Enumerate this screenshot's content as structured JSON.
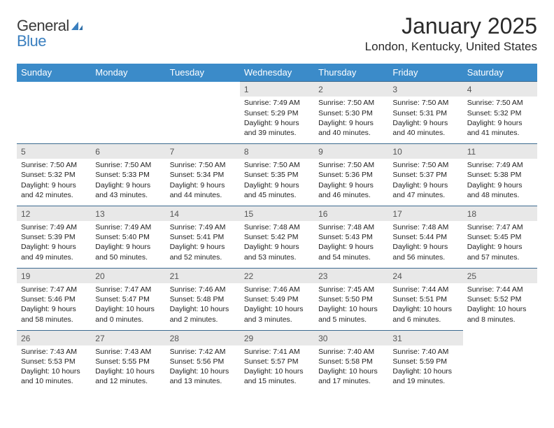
{
  "logo": {
    "word1": "General",
    "word2": "Blue"
  },
  "title": {
    "month": "January 2025",
    "location": "London, Kentucky, United States"
  },
  "colors": {
    "header_bg": "#3b8bc9",
    "header_text": "#ffffff",
    "daynum_bg": "#e8e8e8",
    "daynum_border": "#3b6a8f",
    "body_text": "#222222",
    "logo_gray": "#6a6a6a",
    "logo_blue": "#3a7fbf"
  },
  "typography": {
    "month_title_fontsize": 32,
    "location_fontsize": 17,
    "weekday_fontsize": 13,
    "daynum_fontsize": 12,
    "detail_fontsize": 10.5
  },
  "weekdays": [
    "Sunday",
    "Monday",
    "Tuesday",
    "Wednesday",
    "Thursday",
    "Friday",
    "Saturday"
  ],
  "weeks": [
    [
      null,
      null,
      null,
      {
        "n": "1",
        "sunrise": "7:49 AM",
        "sunset": "5:29 PM",
        "daylight": "9 hours and 39 minutes."
      },
      {
        "n": "2",
        "sunrise": "7:50 AM",
        "sunset": "5:30 PM",
        "daylight": "9 hours and 40 minutes."
      },
      {
        "n": "3",
        "sunrise": "7:50 AM",
        "sunset": "5:31 PM",
        "daylight": "9 hours and 40 minutes."
      },
      {
        "n": "4",
        "sunrise": "7:50 AM",
        "sunset": "5:32 PM",
        "daylight": "9 hours and 41 minutes."
      }
    ],
    [
      {
        "n": "5",
        "sunrise": "7:50 AM",
        "sunset": "5:32 PM",
        "daylight": "9 hours and 42 minutes."
      },
      {
        "n": "6",
        "sunrise": "7:50 AM",
        "sunset": "5:33 PM",
        "daylight": "9 hours and 43 minutes."
      },
      {
        "n": "7",
        "sunrise": "7:50 AM",
        "sunset": "5:34 PM",
        "daylight": "9 hours and 44 minutes."
      },
      {
        "n": "8",
        "sunrise": "7:50 AM",
        "sunset": "5:35 PM",
        "daylight": "9 hours and 45 minutes."
      },
      {
        "n": "9",
        "sunrise": "7:50 AM",
        "sunset": "5:36 PM",
        "daylight": "9 hours and 46 minutes."
      },
      {
        "n": "10",
        "sunrise": "7:50 AM",
        "sunset": "5:37 PM",
        "daylight": "9 hours and 47 minutes."
      },
      {
        "n": "11",
        "sunrise": "7:49 AM",
        "sunset": "5:38 PM",
        "daylight": "9 hours and 48 minutes."
      }
    ],
    [
      {
        "n": "12",
        "sunrise": "7:49 AM",
        "sunset": "5:39 PM",
        "daylight": "9 hours and 49 minutes."
      },
      {
        "n": "13",
        "sunrise": "7:49 AM",
        "sunset": "5:40 PM",
        "daylight": "9 hours and 50 minutes."
      },
      {
        "n": "14",
        "sunrise": "7:49 AM",
        "sunset": "5:41 PM",
        "daylight": "9 hours and 52 minutes."
      },
      {
        "n": "15",
        "sunrise": "7:48 AM",
        "sunset": "5:42 PM",
        "daylight": "9 hours and 53 minutes."
      },
      {
        "n": "16",
        "sunrise": "7:48 AM",
        "sunset": "5:43 PM",
        "daylight": "9 hours and 54 minutes."
      },
      {
        "n": "17",
        "sunrise": "7:48 AM",
        "sunset": "5:44 PM",
        "daylight": "9 hours and 56 minutes."
      },
      {
        "n": "18",
        "sunrise": "7:47 AM",
        "sunset": "5:45 PM",
        "daylight": "9 hours and 57 minutes."
      }
    ],
    [
      {
        "n": "19",
        "sunrise": "7:47 AM",
        "sunset": "5:46 PM",
        "daylight": "9 hours and 58 minutes."
      },
      {
        "n": "20",
        "sunrise": "7:47 AM",
        "sunset": "5:47 PM",
        "daylight": "10 hours and 0 minutes."
      },
      {
        "n": "21",
        "sunrise": "7:46 AM",
        "sunset": "5:48 PM",
        "daylight": "10 hours and 2 minutes."
      },
      {
        "n": "22",
        "sunrise": "7:46 AM",
        "sunset": "5:49 PM",
        "daylight": "10 hours and 3 minutes."
      },
      {
        "n": "23",
        "sunrise": "7:45 AM",
        "sunset": "5:50 PM",
        "daylight": "10 hours and 5 minutes."
      },
      {
        "n": "24",
        "sunrise": "7:44 AM",
        "sunset": "5:51 PM",
        "daylight": "10 hours and 6 minutes."
      },
      {
        "n": "25",
        "sunrise": "7:44 AM",
        "sunset": "5:52 PM",
        "daylight": "10 hours and 8 minutes."
      }
    ],
    [
      {
        "n": "26",
        "sunrise": "7:43 AM",
        "sunset": "5:53 PM",
        "daylight": "10 hours and 10 minutes."
      },
      {
        "n": "27",
        "sunrise": "7:43 AM",
        "sunset": "5:55 PM",
        "daylight": "10 hours and 12 minutes."
      },
      {
        "n": "28",
        "sunrise": "7:42 AM",
        "sunset": "5:56 PM",
        "daylight": "10 hours and 13 minutes."
      },
      {
        "n": "29",
        "sunrise": "7:41 AM",
        "sunset": "5:57 PM",
        "daylight": "10 hours and 15 minutes."
      },
      {
        "n": "30",
        "sunrise": "7:40 AM",
        "sunset": "5:58 PM",
        "daylight": "10 hours and 17 minutes."
      },
      {
        "n": "31",
        "sunrise": "7:40 AM",
        "sunset": "5:59 PM",
        "daylight": "10 hours and 19 minutes."
      },
      null
    ]
  ],
  "labels": {
    "sunrise": "Sunrise:",
    "sunset": "Sunset:",
    "daylight": "Daylight:"
  }
}
